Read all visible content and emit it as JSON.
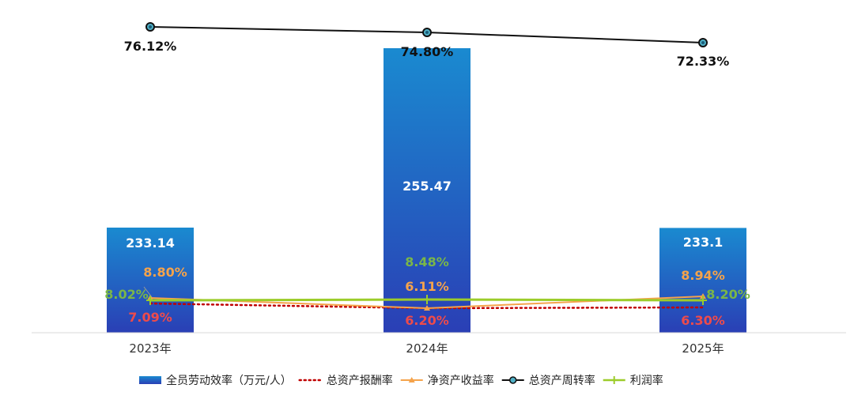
{
  "chart_data": {
    "type": "bar",
    "categories": [
      "2023年",
      "2024年",
      "2025年"
    ],
    "bar_series": {
      "name": "全员劳动效率（万元/人）",
      "values": [
        233.14,
        255.47,
        233.1
      ],
      "labels": [
        "233.14",
        "255.47",
        "233.1"
      ],
      "color_top": "#1a8ad0",
      "color_bottom": "#2a3fb5"
    },
    "line_series": [
      {
        "name": "总资产报酬率",
        "values": [
          7.09,
          6.2,
          6.3
        ],
        "labels": [
          "7.09%",
          "6.20%",
          "6.30%"
        ],
        "color": "#c00000",
        "label_color": "#ee4b4b",
        "style": "dotted"
      },
      {
        "name": "净资产收益率",
        "values": [
          8.8,
          6.11,
          8.94
        ],
        "labels": [
          "8.80%",
          "6.11%",
          "8.94%"
        ],
        "color": "#f5a34b",
        "label_color": "#f5a34b",
        "style": "triangle"
      },
      {
        "name": "总资产周转率",
        "values": [
          76.12,
          74.8,
          72.33
        ],
        "labels": [
          "76.12%",
          "74.80%",
          "72.33%"
        ],
        "color": "#111111",
        "label_color": "#111111",
        "style": "circle"
      },
      {
        "name": "利润率",
        "values": [
          8.02,
          8.48,
          8.2
        ],
        "labels": [
          "8.02%",
          "8.48%",
          "8.20%"
        ],
        "color": "#9ccc2a",
        "label_color": "#7ab648",
        "style": "plus"
      }
    ],
    "legend_position": "bottom",
    "grid": false
  }
}
